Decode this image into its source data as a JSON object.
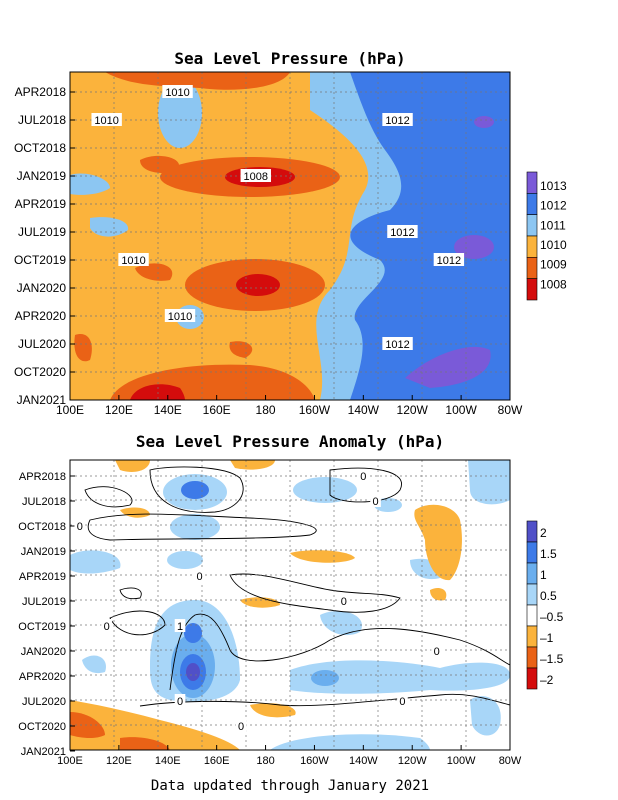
{
  "footer": "Data updated through January 2021",
  "chart_data": [
    {
      "type": "heatmap",
      "title": "Sea Level Pressure (hPa)",
      "x_ticks": [
        "100E",
        "120E",
        "140E",
        "160E",
        "180",
        "160W",
        "140W",
        "120W",
        "100W",
        "80W"
      ],
      "y_ticks": [
        "APR2018",
        "JUL2018",
        "OCT2018",
        "JAN2019",
        "APR2019",
        "JUL2019",
        "OCT2019",
        "JAN2020",
        "APR2020",
        "JUL2020",
        "OCT2020",
        "JAN2021"
      ],
      "colorbar": {
        "labels": [
          "1013",
          "1012",
          "1011",
          "1010",
          "1009",
          "1008"
        ],
        "colors": [
          "#7a5ad8",
          "#3d7ae8",
          "#8cc6f2",
          "#fbb33c",
          "#ea6216",
          "#d40c0c"
        ]
      },
      "contour_labels": [
        {
          "text": "1010",
          "lon": "144E",
          "time": "APR2018"
        },
        {
          "text": "1010",
          "lon": "115E",
          "time": "JUL2018"
        },
        {
          "text": "1012",
          "lon": "126W",
          "time": "JUL2018"
        },
        {
          "text": "1008",
          "lon": "176E",
          "time": "JAN2019"
        },
        {
          "text": "1012",
          "lon": "124W",
          "time": "JUL2019"
        },
        {
          "text": "1010",
          "lon": "126E",
          "time": "OCT2019"
        },
        {
          "text": "1012",
          "lon": "105W",
          "time": "OCT2019"
        },
        {
          "text": "1010",
          "lon": "145E",
          "time": "APR2020"
        },
        {
          "text": "1012",
          "lon": "126W",
          "time": "JUL2020"
        }
      ],
      "grid": true
    },
    {
      "type": "heatmap",
      "title": "Sea Level Pressure Anomaly (hPa)",
      "x_ticks": [
        "100E",
        "120E",
        "140E",
        "160E",
        "180",
        "160W",
        "140W",
        "120W",
        "100W",
        "80W"
      ],
      "y_ticks": [
        "APR2018",
        "JUL2018",
        "OCT2018",
        "JAN2019",
        "APR2019",
        "JUL2019",
        "OCT2019",
        "JAN2020",
        "APR2020",
        "JUL2020",
        "OCT2020",
        "JAN2021"
      ],
      "colorbar": {
        "labels": [
          "2",
          "1.5",
          "1",
          "0.5",
          "–0.5",
          "–1",
          "–1.5",
          "–2"
        ],
        "colors": [
          "#5050c8",
          "#3d7ae8",
          "#6aaeee",
          "#a8d6f8",
          "#ffffff",
          "#fbb33c",
          "#ea6216",
          "#d40c0c"
        ]
      },
      "contour_labels": [
        {
          "text": "0",
          "lon": "140W",
          "time": "APR2018"
        },
        {
          "text": "0",
          "lon": "135W",
          "time": "JUL2018"
        },
        {
          "text": "0",
          "lon": "104E",
          "time": "OCT2018"
        },
        {
          "text": "0",
          "lon": "153E",
          "time": "APR2019"
        },
        {
          "text": "0",
          "lon": "148W",
          "time": "JUL2019"
        },
        {
          "text": "0",
          "lon": "115E",
          "time": "OCT2019"
        },
        {
          "text": "1",
          "lon": "145E",
          "time": "OCT2019"
        },
        {
          "text": "0",
          "lon": "110W",
          "time": "JAN2020"
        },
        {
          "text": "0",
          "lon": "145E",
          "time": "JUL2020"
        },
        {
          "text": "0",
          "lon": "124W",
          "time": "JUL2020"
        },
        {
          "text": "0",
          "lon": "170E",
          "time": "OCT2020"
        }
      ],
      "grid": true
    }
  ]
}
